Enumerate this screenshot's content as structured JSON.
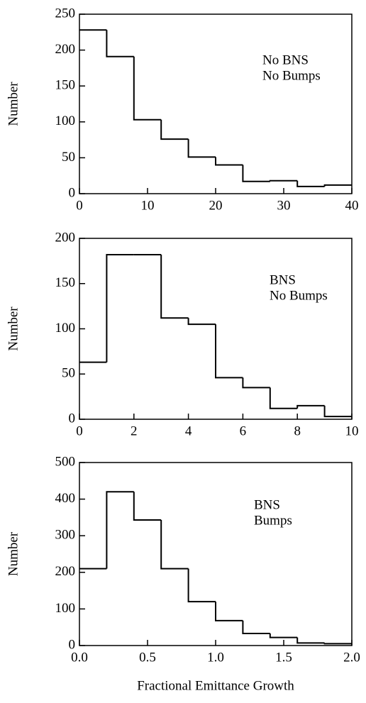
{
  "chart_data": [
    {
      "type": "histogram",
      "ylabel": "Number",
      "annotation": [
        "No BNS",
        "No Bumps"
      ],
      "bins": [
        0,
        4,
        8,
        12,
        16,
        20,
        24,
        28,
        32,
        36,
        40
      ],
      "values": [
        228,
        191,
        103,
        76,
        51,
        40,
        17,
        18,
        10,
        12
      ],
      "color": "#000000",
      "xlim": [
        0,
        40
      ],
      "xticks": [
        0,
        10,
        20,
        30,
        40
      ],
      "ylim": [
        0,
        250
      ],
      "yticks": [
        0,
        50,
        100,
        150,
        200,
        250
      ]
    },
    {
      "type": "histogram",
      "ylabel": "Number",
      "annotation": [
        "BNS",
        "No Bumps"
      ],
      "bins": [
        0,
        1,
        2,
        3,
        4,
        5,
        6,
        7,
        8,
        9,
        10
      ],
      "values": [
        63,
        182,
        182,
        112,
        105,
        46,
        35,
        12,
        15,
        3
      ],
      "color": "#000000",
      "xlim": [
        0,
        10
      ],
      "xticks": [
        0,
        2,
        4,
        6,
        8,
        10
      ],
      "ylim": [
        0,
        200
      ],
      "yticks": [
        0,
        50,
        100,
        150,
        200
      ]
    },
    {
      "type": "histogram",
      "ylabel": "Number",
      "annotation": [
        "BNS",
        "Bumps"
      ],
      "xlabel": "Fractional Emittance Growth",
      "bins": [
        0,
        0.2,
        0.4,
        0.6,
        0.8,
        1.0,
        1.2,
        1.4,
        1.6,
        1.8,
        2.0
      ],
      "values": [
        210,
        420,
        343,
        210,
        120,
        68,
        33,
        22,
        7,
        5
      ],
      "color": "#000000",
      "xlim": [
        0,
        2
      ],
      "xticks": [
        {
          "value": 0,
          "label": "0.0"
        },
        0.5,
        {
          "value": 1,
          "label": "1.0"
        },
        1.5,
        {
          "value": 2,
          "label": "2.0"
        }
      ],
      "ylim": [
        0,
        500
      ],
      "yticks": [
        0,
        100,
        200,
        300,
        400,
        500
      ]
    }
  ]
}
